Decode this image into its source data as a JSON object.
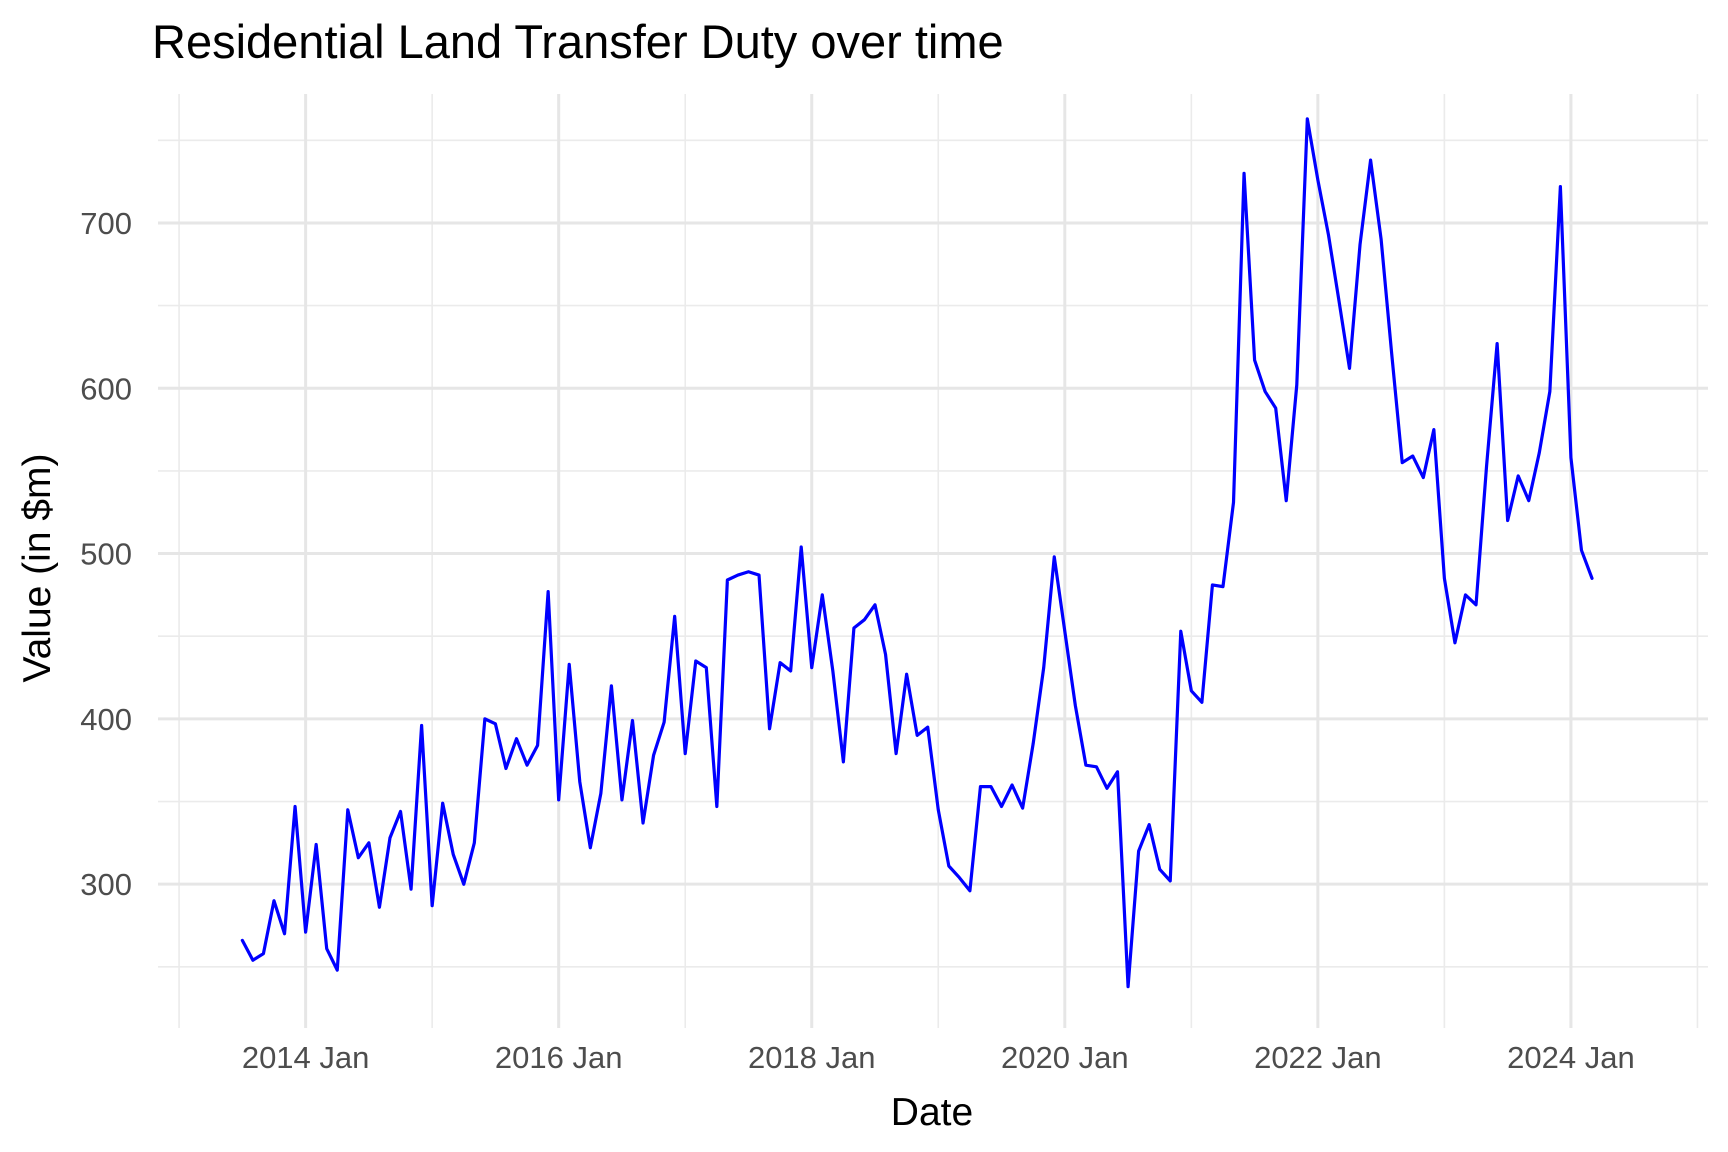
{
  "chart_data": {
    "type": "line",
    "title": "Residential Land Transfer Duty over time",
    "xlabel": "Date",
    "ylabel": "Value (in $m)",
    "x_start": "2013-07",
    "x_frequency": "monthly",
    "xlim": [
      "2012-11",
      "2025-02"
    ],
    "ylim": [
      213,
      778
    ],
    "x_ticks": [
      {
        "date": "2014-01",
        "label": "2014 Jan"
      },
      {
        "date": "2016-01",
        "label": "2016 Jan"
      },
      {
        "date": "2018-01",
        "label": "2018 Jan"
      },
      {
        "date": "2020-01",
        "label": "2020 Jan"
      },
      {
        "date": "2022-01",
        "label": "2022 Jan"
      },
      {
        "date": "2024-01",
        "label": "2024 Jan"
      }
    ],
    "x_minor_ticks": [
      "2013-01",
      "2015-01",
      "2017-01",
      "2019-01",
      "2021-01",
      "2023-01",
      "2025-01"
    ],
    "y_ticks": [
      300,
      400,
      500,
      600,
      700
    ],
    "y_minor_ticks": [
      250,
      350,
      450,
      550,
      650,
      750
    ],
    "grid": true,
    "legend": "none",
    "series": [
      {
        "color": "#0000ff",
        "values": [
          266,
          254,
          258,
          290,
          270,
          347,
          271,
          324,
          261,
          248,
          345,
          316,
          325,
          286,
          328,
          344,
          297,
          396,
          287,
          349,
          318,
          300,
          325,
          400,
          397,
          370,
          388,
          372,
          384,
          477,
          351,
          433,
          362,
          322,
          355,
          420,
          351,
          399,
          337,
          378,
          398,
          462,
          379,
          435,
          431,
          347,
          484,
          487,
          489,
          487,
          394,
          434,
          429,
          504,
          431,
          475,
          429,
          374,
          455,
          460,
          469,
          439,
          379,
          427,
          390,
          395,
          345,
          311,
          304,
          296,
          359,
          359,
          347,
          360,
          346,
          385,
          431,
          498,
          453,
          408,
          372,
          371,
          358,
          368,
          238,
          320,
          336,
          309,
          302,
          453,
          417,
          410,
          481,
          480,
          531,
          730,
          617,
          598,
          588,
          532,
          602,
          763,
          726,
          693,
          653,
          612,
          687,
          738,
          690,
          621,
          555,
          559,
          546,
          575,
          485,
          446,
          475,
          469,
          553,
          627,
          520,
          547,
          532,
          561,
          598,
          722,
          558,
          502,
          485
        ]
      }
    ]
  }
}
